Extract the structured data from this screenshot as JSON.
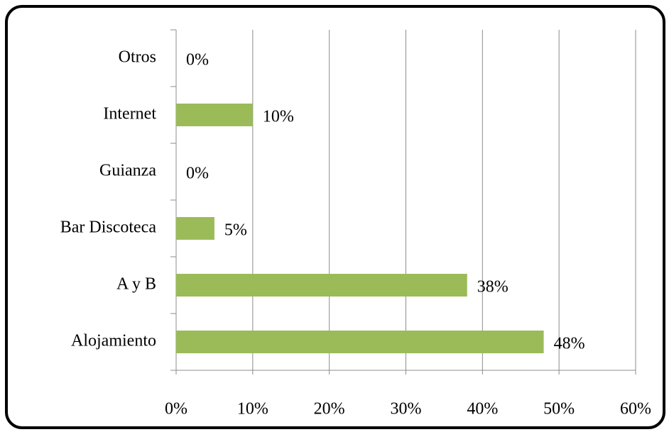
{
  "chart_data": {
    "type": "hbar",
    "categories": [
      "Alojamiento",
      "A y B",
      "Bar Discoteca",
      "Guianza",
      "Internet",
      "Otros"
    ],
    "values": [
      48,
      38,
      5,
      0,
      10,
      0
    ],
    "value_labels": [
      "48%",
      "38%",
      "5%",
      "0%",
      "10%",
      "0%"
    ],
    "color": "#9bbb59",
    "xlim": [
      0,
      60
    ],
    "xticks": [
      {
        "value": 0,
        "label": "0%"
      },
      {
        "value": 10,
        "label": "10%"
      },
      {
        "value": 20,
        "label": "20%"
      },
      {
        "value": 30,
        "label": "30%"
      },
      {
        "value": 40,
        "label": "40%"
      },
      {
        "value": 50,
        "label": "50%"
      },
      {
        "value": 60,
        "label": "60%"
      }
    ],
    "grid": true
  }
}
